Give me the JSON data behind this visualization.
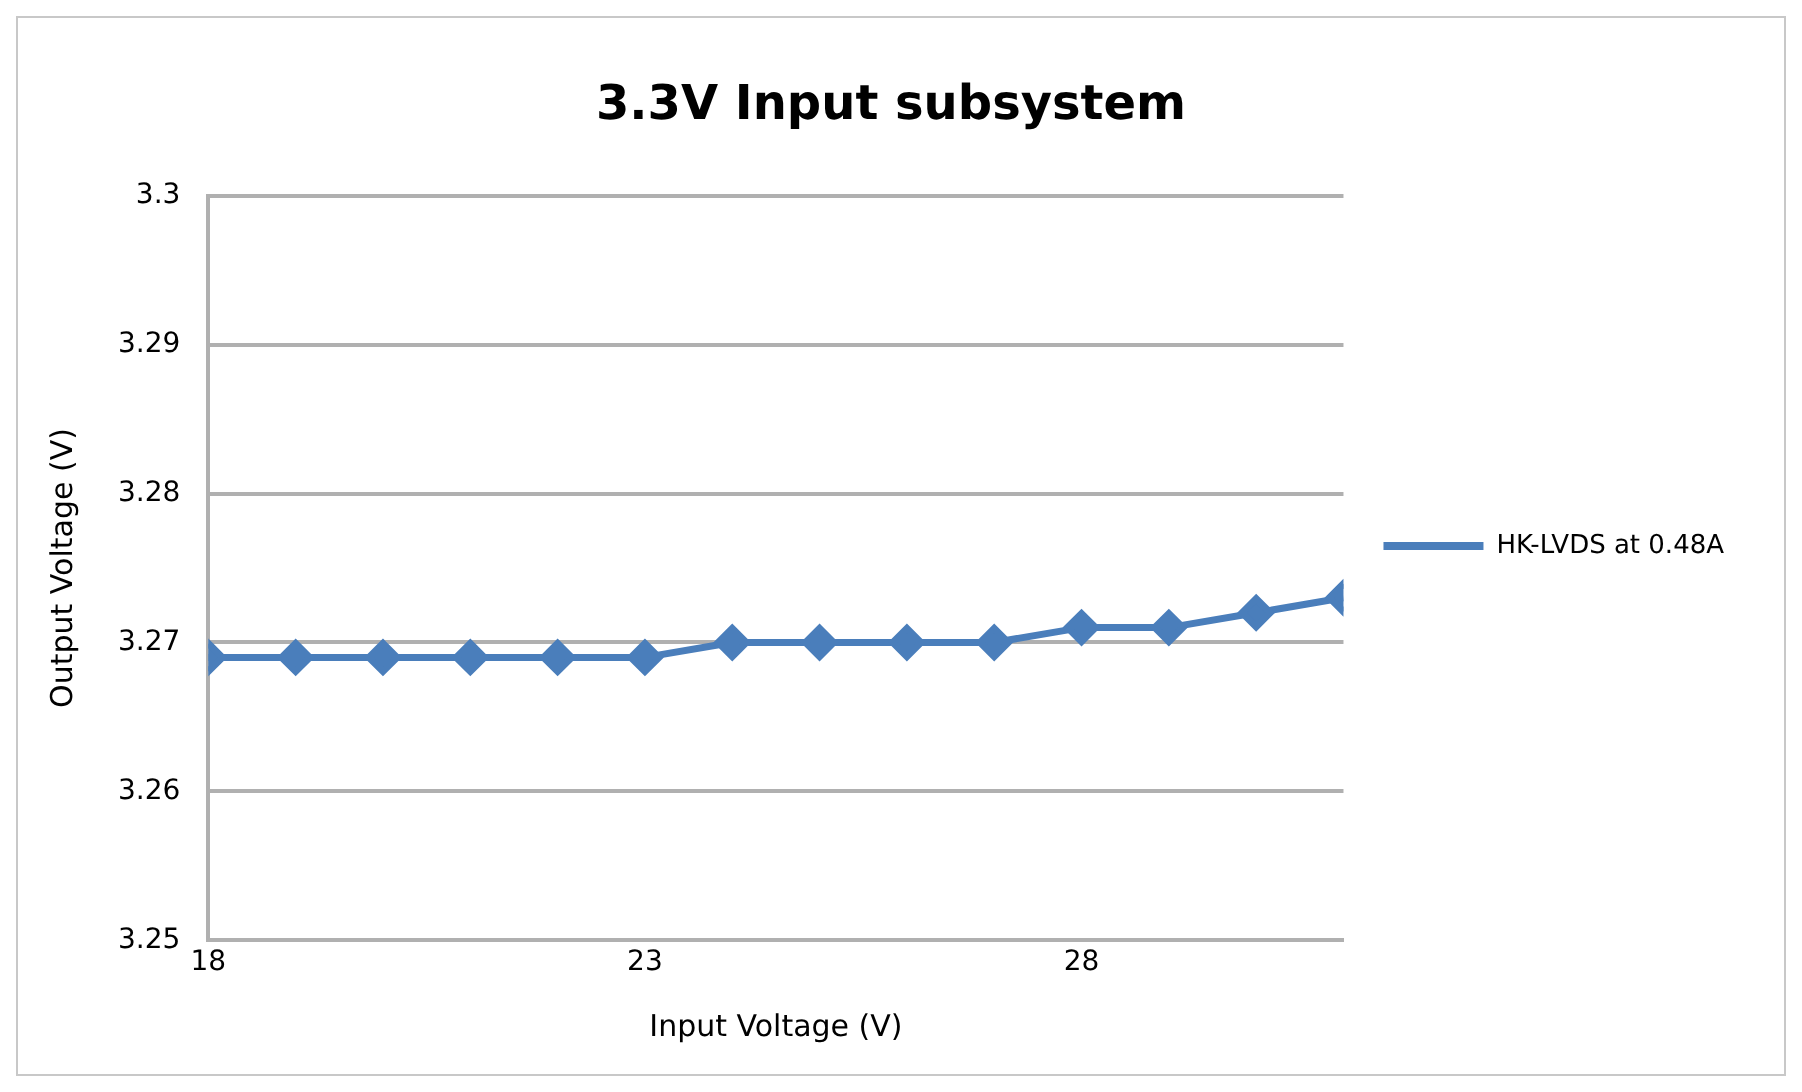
{
  "chart_data": {
    "type": "line",
    "title": "3.3V Input subsystem",
    "xlabel": "Input Voltage (V)",
    "ylabel": "Output Voltage (V)",
    "x": [
      18,
      19,
      20,
      21,
      22,
      23,
      24,
      25,
      26,
      27,
      28,
      29,
      30,
      31
    ],
    "series": [
      {
        "name": "HK-LVDS at 0.48A",
        "color": "#4a7ebb",
        "values": [
          3.269,
          3.269,
          3.269,
          3.269,
          3.269,
          3.269,
          3.27,
          3.27,
          3.27,
          3.27,
          3.271,
          3.271,
          3.272,
          3.273
        ]
      }
    ],
    "xlim": [
      18,
      31
    ],
    "xticks": [
      18,
      23,
      28
    ],
    "ylim": [
      3.25,
      3.3
    ],
    "yticks": [
      3.25,
      3.26,
      3.27,
      3.28,
      3.29,
      3.3
    ],
    "grid": "y",
    "legend": "right",
    "marker": "diamond",
    "line_style": "solid"
  }
}
